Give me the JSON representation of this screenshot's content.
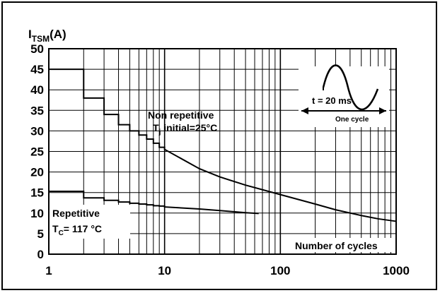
{
  "chart_data": {
    "type": "line",
    "y_label_main": "I",
    "y_label_sub": "TSM",
    "y_label_unit": "(A)",
    "xlabel": "Number of cycles",
    "x_scale": "log",
    "xlim": [
      1,
      1000
    ],
    "ylim": [
      0,
      50
    ],
    "x_ticks": [
      1,
      10,
      100,
      1000
    ],
    "x_tick_labels": [
      "1",
      "10",
      "100",
      "1000"
    ],
    "y_ticks": [
      0,
      5,
      10,
      15,
      20,
      25,
      30,
      35,
      40,
      45,
      50
    ],
    "y_tick_labels": [
      "0",
      "5",
      "10",
      "15",
      "20",
      "25",
      "30",
      "35",
      "40",
      "45",
      "50"
    ],
    "grid": true,
    "series": [
      {
        "name": "Non repetitive",
        "label_line1": "Non repetitive",
        "label_line2_main": "T",
        "label_line2_sub": "j",
        "label_line2_rest": " initial=25°C",
        "style": "step-then-smooth",
        "step_points": [
          [
            1,
            45
          ],
          [
            2,
            38
          ],
          [
            3,
            34
          ],
          [
            4,
            31.5
          ],
          [
            5,
            30
          ],
          [
            6,
            29
          ],
          [
            7,
            28
          ],
          [
            8,
            27
          ],
          [
            9,
            26
          ],
          [
            10,
            25.5
          ]
        ],
        "smooth_points": [
          [
            10,
            25.5
          ],
          [
            20,
            20.8
          ],
          [
            30,
            18.8
          ],
          [
            50,
            16.8
          ],
          [
            100,
            14.5
          ],
          [
            200,
            12.2
          ],
          [
            300,
            10.8
          ],
          [
            500,
            9.4
          ],
          [
            700,
            8.6
          ],
          [
            1000,
            8
          ]
        ]
      },
      {
        "name": "Repetitive",
        "label_line1": "Repetitive",
        "label_line2_main": "T",
        "label_line2_sub": "C",
        "label_line2_rest": "= 117 °C",
        "style": "step-then-smooth",
        "step_points": [
          [
            1,
            15.3
          ],
          [
            2,
            13.7
          ],
          [
            3,
            13.1
          ],
          [
            4,
            12.7
          ],
          [
            5,
            12.4
          ],
          [
            6,
            12.2
          ],
          [
            7,
            12
          ],
          [
            8,
            11.8
          ],
          [
            9,
            11.7
          ],
          [
            10,
            11.5
          ]
        ],
        "smooth_points": [
          [
            10,
            11.5
          ],
          [
            20,
            11
          ],
          [
            30,
            10.6
          ],
          [
            50,
            10.1
          ],
          [
            65,
            9.9
          ]
        ]
      }
    ],
    "inset": {
      "t_label": "t = 20 ms",
      "cycle_label": "One cycle"
    }
  }
}
